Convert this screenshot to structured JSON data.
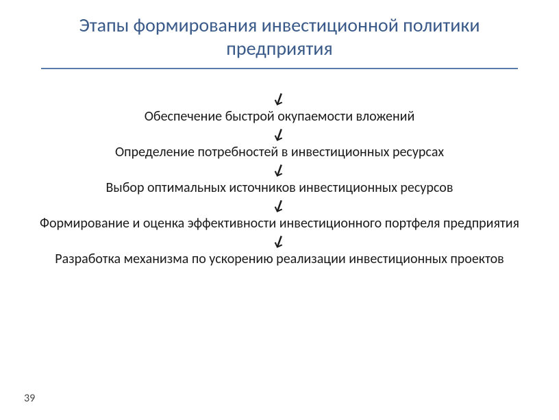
{
  "title": "Этапы формирования инвестиционной политики предприятия",
  "steps": [
    "Обеспечение быстрой окупаемости вложений",
    "Определение потребностей в инвестиционных ресурсах",
    "Выбор оптимальных источников инвестиционных ресурсов",
    "Формирование и оценка эффективности инвестиционного портфеля предприятия",
    "Разработка механизма по ускорению реализации инвестиционных проектов"
  ],
  "arrow_glyph": "↓",
  "page_number": "39",
  "colors": {
    "title": "#3a5a8a",
    "divider": "#5a7aaa",
    "text": "#1a1a1a",
    "background": "#ffffff"
  },
  "typography": {
    "title_fontsize": 28,
    "step_fontsize": 20,
    "arrow_fontsize": 22,
    "page_number_fontsize": 16
  }
}
